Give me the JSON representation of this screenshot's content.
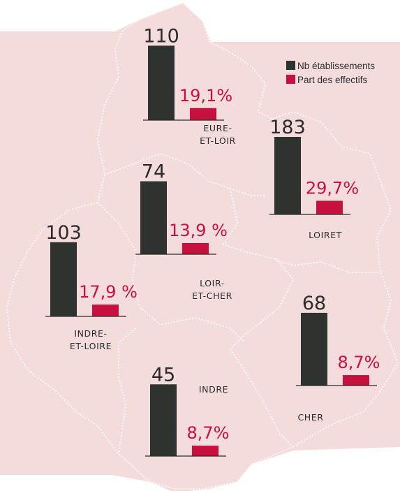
{
  "chart_data": {
    "type": "bar",
    "categories": [
      [
        "EURE-",
        "ET-LOIR"
      ],
      [
        "LOIRET"
      ],
      [
        "LOIR-",
        "ET-CHER"
      ],
      [
        "INDRE-",
        "ET-LOIRE"
      ],
      [
        "CHER"
      ],
      [
        "INDRE"
      ]
    ],
    "series": [
      {
        "name": "Nb établissements",
        "color": "#2e3330",
        "values": [
          110,
          183,
          74,
          103,
          68,
          45
        ]
      },
      {
        "name": "Part des effectifs",
        "color": "#c8103e",
        "values": [
          19.1,
          29.7,
          13.9,
          17.9,
          8.7,
          8.7
        ],
        "value_labels": [
          "19,1%",
          "29,7%",
          "13,9 %",
          "17,9 %",
          "8,7%",
          "8,7%"
        ]
      }
    ]
  }
}
